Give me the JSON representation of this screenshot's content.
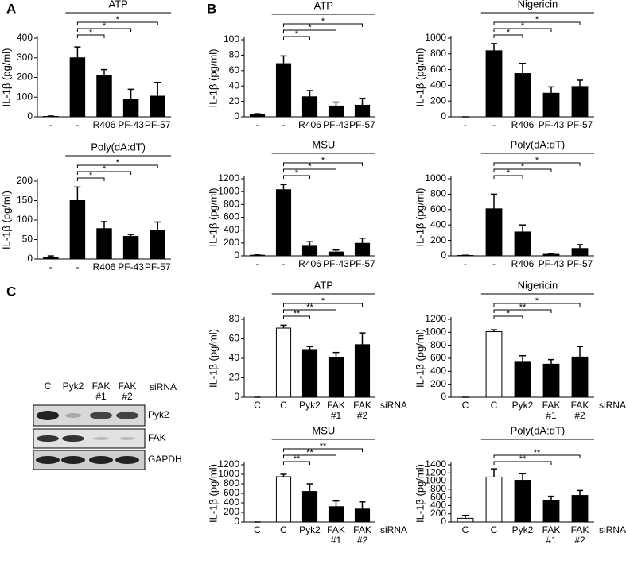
{
  "panel_labels": [
    "A",
    "B",
    "C"
  ],
  "blot": {
    "lanes": [
      "C",
      "Pyk2",
      "FAK\n#1",
      "FAK\n#2"
    ],
    "annotation": "siRNA",
    "rows": [
      "Pyk2",
      "FAK",
      "GAPDH"
    ]
  },
  "chart_data": [
    {
      "type": "bar",
      "title": "ATP",
      "ylabel": "IL-1β (pg/ml)",
      "categories": [
        "-",
        "-",
        "R406",
        "PF-43",
        "PF-57"
      ],
      "values": [
        2,
        300,
        210,
        90,
        105
      ],
      "errors": [
        2,
        55,
        30,
        50,
        70
      ],
      "colors": [
        "#000",
        "#000",
        "#000",
        "#000",
        "#000"
      ],
      "ylim": [
        0,
        400
      ],
      "yticks": [
        0,
        100,
        200,
        300,
        400
      ],
      "significance": [
        null,
        null,
        "*",
        "*",
        "*"
      ]
    },
    {
      "type": "bar",
      "title": "Poly(dA:dT)",
      "ylabel": "IL-1β (pg/ml)",
      "categories": [
        "-",
        "-",
        "R406",
        "PF-43",
        "PF-57"
      ],
      "values": [
        5,
        150,
        78,
        58,
        73
      ],
      "errors": [
        3,
        35,
        18,
        5,
        22
      ],
      "colors": [
        "#000",
        "#000",
        "#000",
        "#000",
        "#000"
      ],
      "ylim": [
        0,
        200
      ],
      "yticks": [
        0,
        50,
        100,
        150,
        200
      ],
      "significance": [
        null,
        null,
        "*",
        "*",
        "*"
      ]
    },
    {
      "type": "bar",
      "title": "ATP",
      "ylabel": "IL-1β (pg/ml)",
      "categories": [
        "-",
        "-",
        "R406",
        "PF-43",
        "PF-57"
      ],
      "values": [
        3,
        69,
        26,
        14,
        15
      ],
      "errors": [
        1,
        10,
        8,
        5,
        9
      ],
      "colors": [
        "#000",
        "#000",
        "#000",
        "#000",
        "#000"
      ],
      "ylim": [
        0,
        100
      ],
      "yticks": [
        0,
        20,
        40,
        60,
        80,
        100
      ],
      "significance": [
        null,
        null,
        "*",
        "*",
        "*"
      ]
    },
    {
      "type": "bar",
      "title": "Nigericin",
      "ylabel": "IL-1β (pg/ml)",
      "categories": [
        "-",
        "-",
        "R406",
        "PF-43",
        "PF-57"
      ],
      "values": [
        0,
        840,
        550,
        300,
        385
      ],
      "errors": [
        0,
        90,
        130,
        80,
        80
      ],
      "colors": [
        "#000",
        "#000",
        "#000",
        "#000",
        "#000"
      ],
      "ylim": [
        0,
        1000
      ],
      "yticks": [
        0,
        200,
        400,
        600,
        800,
        1000
      ],
      "significance": [
        null,
        null,
        "*",
        "*",
        "*"
      ]
    },
    {
      "type": "bar",
      "title": "MSU",
      "ylabel": "IL-1β (pg/ml)",
      "categories": [
        "-",
        "-",
        "R406",
        "PF-43",
        "PF-57"
      ],
      "values": [
        10,
        1030,
        150,
        60,
        195
      ],
      "errors": [
        5,
        80,
        70,
        30,
        80
      ],
      "colors": [
        "#000",
        "#000",
        "#000",
        "#000",
        "#000"
      ],
      "ylim": [
        0,
        1200
      ],
      "yticks": [
        0,
        200,
        400,
        600,
        800,
        1000,
        1200
      ],
      "significance": [
        null,
        null,
        "*",
        "*",
        "*"
      ]
    },
    {
      "type": "bar",
      "title": "Poly(dA:dT)",
      "ylabel": "IL-1β (pg/ml)",
      "categories": [
        "-",
        "-",
        "R406",
        "PF-43",
        "PF-57"
      ],
      "values": [
        5,
        610,
        310,
        20,
        95
      ],
      "errors": [
        3,
        190,
        90,
        10,
        50
      ],
      "colors": [
        "#000",
        "#000",
        "#000",
        "#000",
        "#000"
      ],
      "ylim": [
        0,
        1000
      ],
      "yticks": [
        0,
        200,
        400,
        600,
        800,
        1000
      ],
      "significance": [
        null,
        null,
        "*",
        "*",
        "*"
      ]
    },
    {
      "type": "bar",
      "title": "ATP",
      "ylabel": "IL-1β (pg/ml)",
      "categories": [
        "C",
        "C",
        "Pyk2",
        "FAK\n#1",
        "FAK\n#2"
      ],
      "annotation": "siRNA",
      "values": [
        0,
        71,
        49,
        41,
        54
      ],
      "errors": [
        0,
        3,
        3,
        5,
        12
      ],
      "colors": [
        "#fff",
        "#fff",
        "#000",
        "#000",
        "#000"
      ],
      "ylim": [
        0,
        80
      ],
      "yticks": [
        0,
        20,
        40,
        60,
        80
      ],
      "significance": [
        null,
        null,
        "**",
        "**",
        "*"
      ]
    },
    {
      "type": "bar",
      "title": "Nigericin",
      "ylabel": "IL-1β (pg/ml)",
      "categories": [
        "C",
        "C",
        "Pyk2",
        "FAK\n#1",
        "FAK\n#2"
      ],
      "annotation": "siRNA",
      "values": [
        0,
        1010,
        540,
        510,
        620
      ],
      "errors": [
        0,
        30,
        100,
        70,
        160
      ],
      "colors": [
        "#fff",
        "#fff",
        "#000",
        "#000",
        "#000"
      ],
      "ylim": [
        0,
        1200
      ],
      "yticks": [
        0,
        200,
        400,
        600,
        800,
        1000,
        1200
      ],
      "significance": [
        null,
        null,
        "*",
        "**",
        "*"
      ]
    },
    {
      "type": "bar",
      "title": "MSU",
      "ylabel": "IL-1β (pg/ml)",
      "categories": [
        "C",
        "C",
        "Pyk2",
        "FAK\n#1",
        "FAK\n#2"
      ],
      "annotation": "siRNA",
      "values": [
        0,
        950,
        640,
        320,
        270
      ],
      "errors": [
        0,
        50,
        160,
        120,
        150
      ],
      "colors": [
        "#fff",
        "#fff",
        "#000",
        "#000",
        "#000"
      ],
      "ylim": [
        0,
        1200
      ],
      "yticks": [
        0,
        200,
        400,
        600,
        800,
        1000,
        1200
      ],
      "significance": [
        null,
        null,
        "**",
        "**",
        "**"
      ]
    },
    {
      "type": "bar",
      "title": "Poly(dA:dT)",
      "ylabel": "IL-1β (pg/ml)",
      "categories": [
        "C",
        "C",
        "Pyk2",
        "FAK\n#1",
        "FAK\n#2"
      ],
      "annotation": "siRNA",
      "values": [
        90,
        1100,
        1020,
        530,
        650
      ],
      "errors": [
        70,
        200,
        160,
        100,
        120
      ],
      "colors": [
        "#fff",
        "#fff",
        "#000",
        "#000",
        "#000"
      ],
      "ylim": [
        0,
        1400
      ],
      "yticks": [
        0,
        200,
        400,
        600,
        800,
        1000,
        1200,
        1400
      ],
      "significance": [
        null,
        null,
        null,
        "**",
        "**"
      ]
    }
  ]
}
